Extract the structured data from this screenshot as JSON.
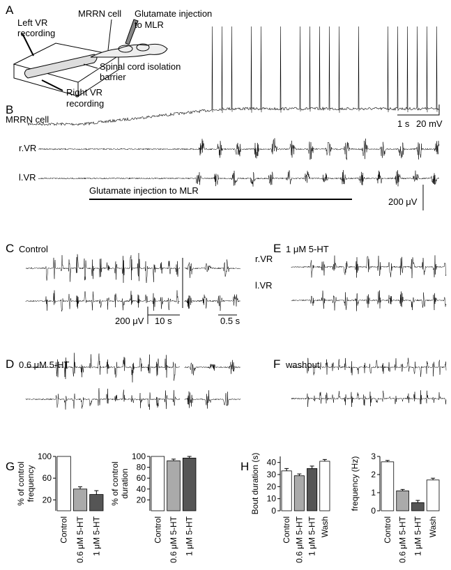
{
  "panels": {
    "A": "A",
    "B": "B",
    "C": "C",
    "D": "D",
    "E": "E",
    "F": "F",
    "G": "G",
    "H": "H"
  },
  "diagram": {
    "left_vr": [
      "Left VR",
      "recording"
    ],
    "mrrn": "MRRN cell",
    "glutamate": [
      "Glutamate injection",
      "to MLR"
    ],
    "barrier": [
      "Spinal cord isolation",
      "barrier"
    ],
    "right_vr": [
      "Right VR",
      "recording"
    ]
  },
  "b": {
    "cell_label": "MRRN cell",
    "time_scale": "1 s",
    "mv_scale": "20 mV",
    "rvr": "r.VR",
    "lvr": "l.VR",
    "injection": "Glutamate injection to MLR",
    "uv_scale": "200 μV"
  },
  "c": {
    "condition": "Control",
    "rvr": "r.VR",
    "lvr": "l.VR",
    "uv_scale": "200 μV",
    "long_scale": "10 s",
    "short_scale": "0.5 s"
  },
  "d": {
    "condition": "0.6 μM 5-HT"
  },
  "e": {
    "condition": "1 μM 5-HT"
  },
  "f": {
    "condition": "washout"
  },
  "bar_charts": [
    {
      "ylabel": [
        "% of control",
        "frequency"
      ],
      "categories": [
        "Control",
        "0.6 μM 5-HT",
        "1 μM 5-HT"
      ],
      "values": [
        100,
        40,
        30
      ],
      "errors": [
        0,
        4,
        7
      ],
      "colors": [
        "#ffffff",
        "#aaaaaa",
        "#555555"
      ],
      "ylim": [
        0,
        100
      ],
      "yticks": [
        20,
        60,
        100
      ]
    },
    {
      "ylabel": [
        "% of control",
        "duration"
      ],
      "categories": [
        "Control",
        "0.6 μM 5-HT",
        "1 μM 5-HT"
      ],
      "values": [
        100,
        92,
        97
      ],
      "errors": [
        0,
        3,
        3
      ],
      "colors": [
        "#ffffff",
        "#aaaaaa",
        "#555555"
      ],
      "ylim": [
        0,
        100
      ],
      "yticks": [
        20,
        40,
        60,
        80,
        100
      ]
    },
    {
      "ylabel": [
        "Bout duration (s)"
      ],
      "categories": [
        "Control",
        "0.6 μM 5-HT",
        "1 μM 5-HT",
        "Wash"
      ],
      "values": [
        33,
        29,
        35,
        41
      ],
      "errors": [
        2,
        1.5,
        2,
        1.5
      ],
      "colors": [
        "#ffffff",
        "#aaaaaa",
        "#555555",
        "#ffffff"
      ],
      "ylim": [
        0,
        45
      ],
      "yticks": [
        0,
        10,
        20,
        30,
        40
      ]
    },
    {
      "ylabel": [
        "frequency (Hz)"
      ],
      "categories": [
        "Control",
        "0.6 μM 5-HT",
        "1 μM 5-HT",
        "Wash"
      ],
      "values": [
        2.7,
        1.1,
        0.45,
        1.7
      ],
      "errors": [
        0.08,
        0.08,
        0.12,
        0.1
      ],
      "colors": [
        "#ffffff",
        "#aaaaaa",
        "#555555",
        "#ffffff"
      ],
      "ylim": [
        0,
        3
      ],
      "yticks": [
        0,
        1,
        2,
        3
      ]
    }
  ]
}
